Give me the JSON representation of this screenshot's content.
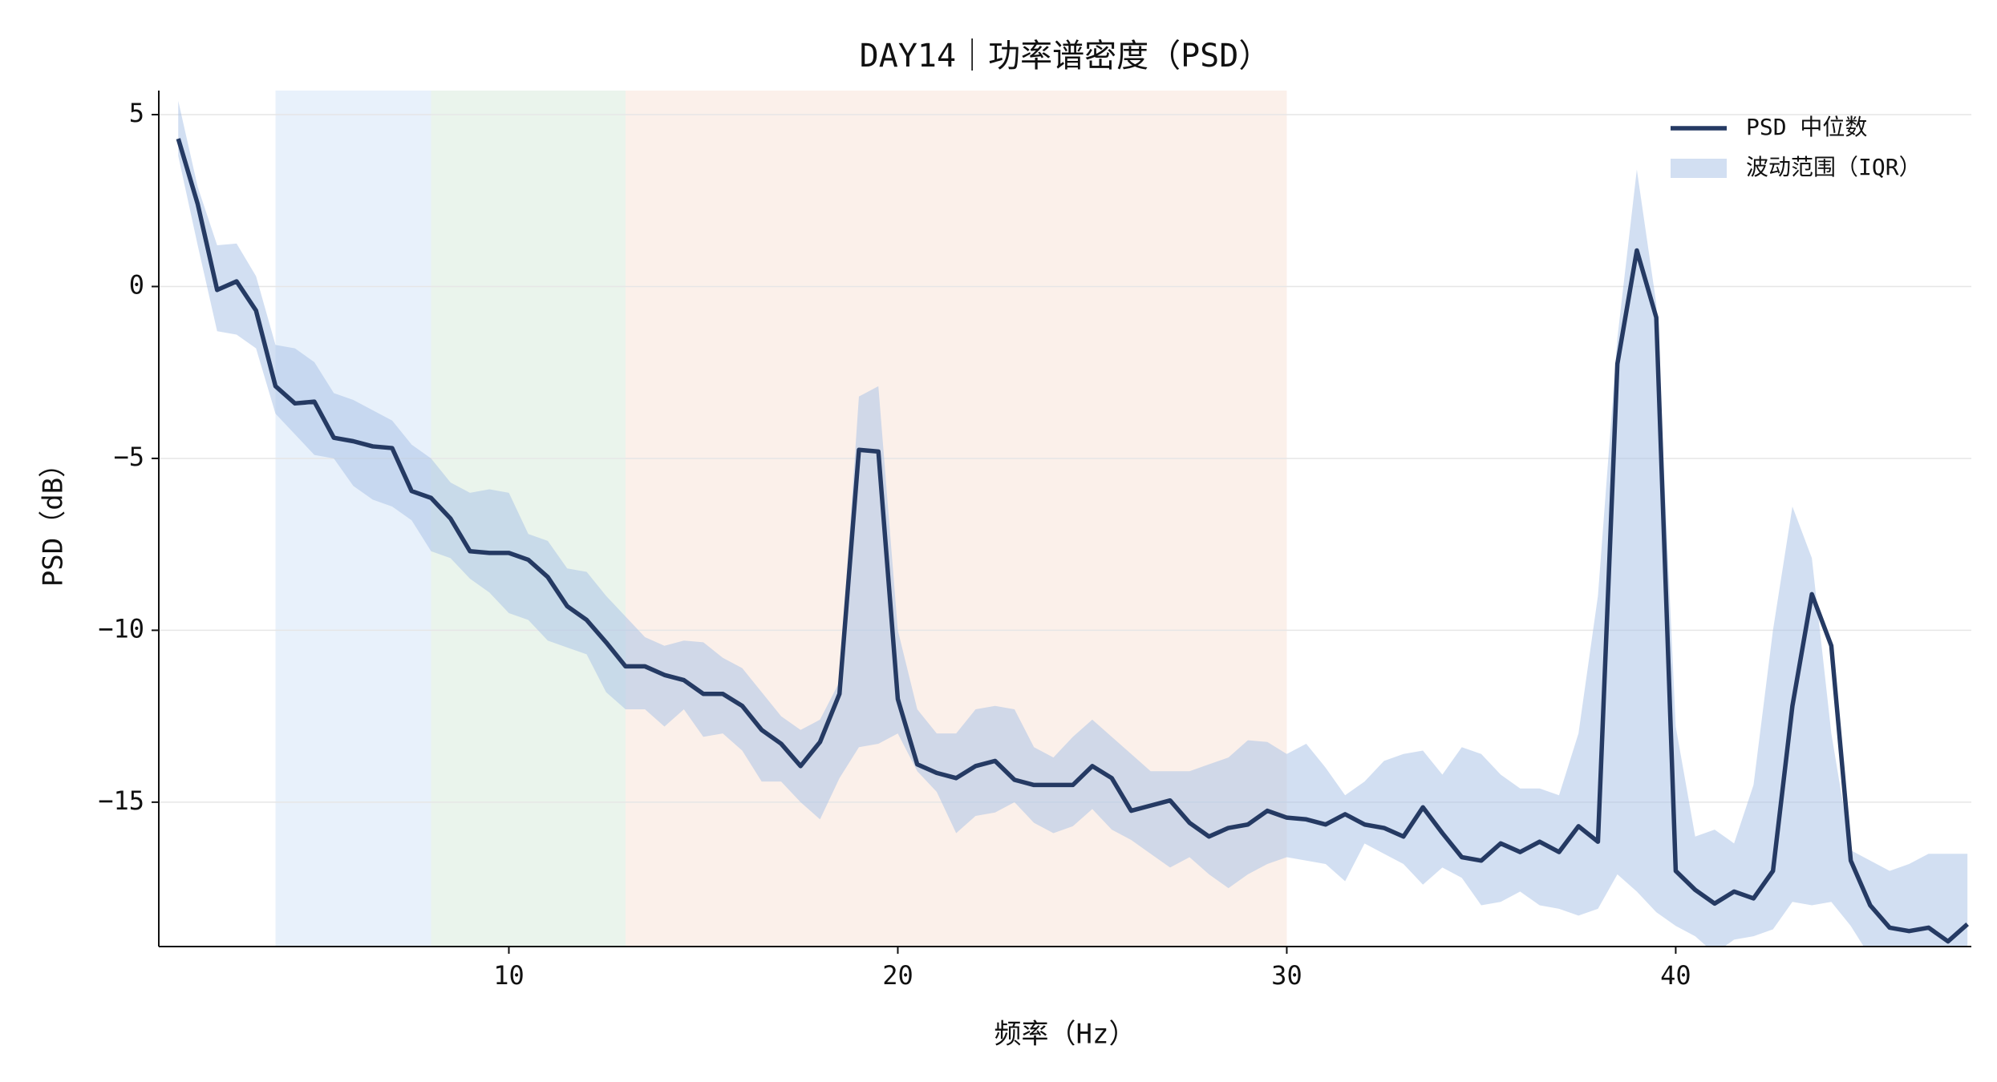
{
  "chart_data": {
    "type": "line",
    "title": "DAY14｜功率谱密度（PSD）",
    "x_label": "频率（Hz）",
    "y_label": "PSD（dB）",
    "x": [
      1.5,
      2,
      2.5,
      3,
      3.5,
      4,
      4.5,
      5,
      5.5,
      6,
      6.5,
      7,
      7.5,
      8,
      8.5,
      9,
      9.5,
      10,
      10.5,
      11,
      11.5,
      12,
      12.5,
      13,
      13.5,
      14,
      14.5,
      15,
      15.5,
      16,
      16.5,
      17,
      17.5,
      18,
      18.5,
      19,
      19.5,
      20,
      20.5,
      21,
      21.5,
      22,
      22.5,
      23,
      23.5,
      24,
      24.5,
      25,
      25.5,
      26,
      26.5,
      27,
      27.5,
      28,
      28.5,
      29,
      29.5,
      30,
      30.5,
      31,
      31.5,
      32,
      32.5,
      33,
      33.5,
      34,
      34.5,
      35,
      35.5,
      36,
      36.5,
      37,
      37.5,
      38,
      38.5,
      39,
      39.5,
      40,
      40.5,
      41,
      41.5,
      42,
      42.5,
      43,
      43.5,
      44,
      44.5,
      45,
      45.5,
      46,
      46.5,
      47,
      47.5
    ],
    "series": [
      {
        "name": "PSD 中位数",
        "color": "#253a63",
        "values": [
          4.3,
          2.4,
          -0.1,
          0.15,
          -0.7,
          -2.9,
          -3.4,
          -3.35,
          -4.4,
          -4.5,
          -4.65,
          -4.7,
          -5.95,
          -6.15,
          -6.75,
          -7.7,
          -7.75,
          -7.75,
          -7.95,
          -8.45,
          -9.3,
          -9.7,
          -10.35,
          -11.05,
          -11.05,
          -11.3,
          -11.45,
          -11.85,
          -11.85,
          -12.2,
          -12.9,
          -13.3,
          -13.95,
          -13.25,
          -11.85,
          -4.75,
          -4.8,
          -12.0,
          -13.9,
          -14.15,
          -14.3,
          -13.95,
          -13.8,
          -14.35,
          -14.5,
          -14.5,
          -14.5,
          -13.95,
          -14.3,
          -15.25,
          -15.1,
          -14.95,
          -15.6,
          -16.0,
          -15.75,
          -15.65,
          -15.25,
          -15.45,
          -15.5,
          -15.65,
          -15.35,
          -15.65,
          -15.75,
          -16.0,
          -15.15,
          -15.9,
          -16.6,
          -16.7,
          -16.2,
          -16.45,
          -16.15,
          -16.45,
          -15.7,
          -16.15,
          -2.25,
          1.05,
          -0.9,
          -17.0,
          -17.55,
          -17.95,
          -17.6,
          -17.8,
          -17.0,
          -12.2,
          -8.95,
          -10.45,
          -16.7,
          -18.0,
          -18.65,
          -18.75,
          -18.65,
          -19.05,
          -18.55
        ]
      }
    ],
    "iqr": {
      "name": "波动范围（IQR）",
      "color": "#a6bfe6",
      "alpha": 0.5,
      "upper": [
        5.4,
        2.9,
        1.2,
        1.25,
        0.3,
        -1.7,
        -1.8,
        -2.2,
        -3.1,
        -3.3,
        -3.6,
        -3.9,
        -4.6,
        -5.0,
        -5.7,
        -6.0,
        -5.9,
        -6.0,
        -7.2,
        -7.4,
        -8.2,
        -8.3,
        -9.0,
        -9.6,
        -10.2,
        -10.45,
        -10.3,
        -10.35,
        -10.8,
        -11.1,
        -11.8,
        -12.5,
        -12.9,
        -12.6,
        -11.5,
        -3.2,
        -2.9,
        -10.0,
        -12.3,
        -13.0,
        -13.0,
        -12.3,
        -12.2,
        -12.3,
        -13.4,
        -13.7,
        -13.1,
        -12.6,
        -13.1,
        -13.6,
        -14.1,
        -14.1,
        -14.1,
        -13.9,
        -13.7,
        -13.2,
        -13.25,
        -13.6,
        -13.3,
        -14.0,
        -14.8,
        -14.4,
        -13.8,
        -13.6,
        -13.5,
        -14.2,
        -13.4,
        -13.6,
        -14.2,
        -14.6,
        -14.6,
        -14.8,
        -13.0,
        -9.0,
        -1.5,
        3.4,
        -0.5,
        -12.8,
        -16.0,
        -15.8,
        -16.2,
        -14.5,
        -10.0,
        -6.4,
        -7.9,
        -13.0,
        -16.4,
        -16.7,
        -17.0,
        -16.8,
        -16.5,
        -16.5,
        -16.5
      ],
      "lower": [
        3.8,
        1.2,
        -1.3,
        -1.4,
        -1.8,
        -3.7,
        -4.3,
        -4.9,
        -5.0,
        -5.8,
        -6.2,
        -6.4,
        -6.8,
        -7.7,
        -7.9,
        -8.5,
        -8.9,
        -9.5,
        -9.7,
        -10.3,
        -10.5,
        -10.7,
        -11.8,
        -12.3,
        -12.3,
        -12.8,
        -12.3,
        -13.1,
        -13.0,
        -13.5,
        -14.4,
        -14.4,
        -15.0,
        -15.5,
        -14.3,
        -13.4,
        -13.3,
        -13.0,
        -14.1,
        -14.7,
        -15.9,
        -15.4,
        -15.3,
        -15.0,
        -15.6,
        -15.9,
        -15.7,
        -15.2,
        -15.8,
        -16.1,
        -16.5,
        -16.9,
        -16.6,
        -17.1,
        -17.5,
        -17.1,
        -16.8,
        -16.6,
        -16.7,
        -16.8,
        -17.3,
        -16.2,
        -16.5,
        -16.8,
        -17.4,
        -16.9,
        -17.2,
        -18.0,
        -17.9,
        -17.6,
        -18.0,
        -18.1,
        -18.3,
        -18.1,
        -17.1,
        -17.6,
        -18.2,
        -18.6,
        -18.9,
        -19.4,
        -19.0,
        -18.9,
        -18.7,
        -17.9,
        -18.0,
        -17.9,
        -18.6,
        -19.5,
        -19.5,
        -19.5,
        -19.5,
        -19.5,
        -19.5
      ]
    },
    "bands": [
      {
        "x": [
          4,
          8
        ],
        "color": "#e8f1fb"
      },
      {
        "x": [
          8,
          13
        ],
        "color": "#eaf4ec"
      },
      {
        "x": [
          13,
          30
        ],
        "color": "#fbf0ea"
      }
    ],
    "xlim": [
      1.0,
      47.6
    ],
    "ylim": [
      -19.2,
      5.7
    ],
    "xticks": [
      10,
      20,
      30,
      40
    ],
    "yticks": [
      {
        "value": -15,
        "label": "−15"
      },
      {
        "value": -10,
        "label": "−10"
      },
      {
        "value": -5,
        "label": "−5"
      },
      0,
      5
    ],
    "grid": true,
    "legend": "upper right"
  }
}
